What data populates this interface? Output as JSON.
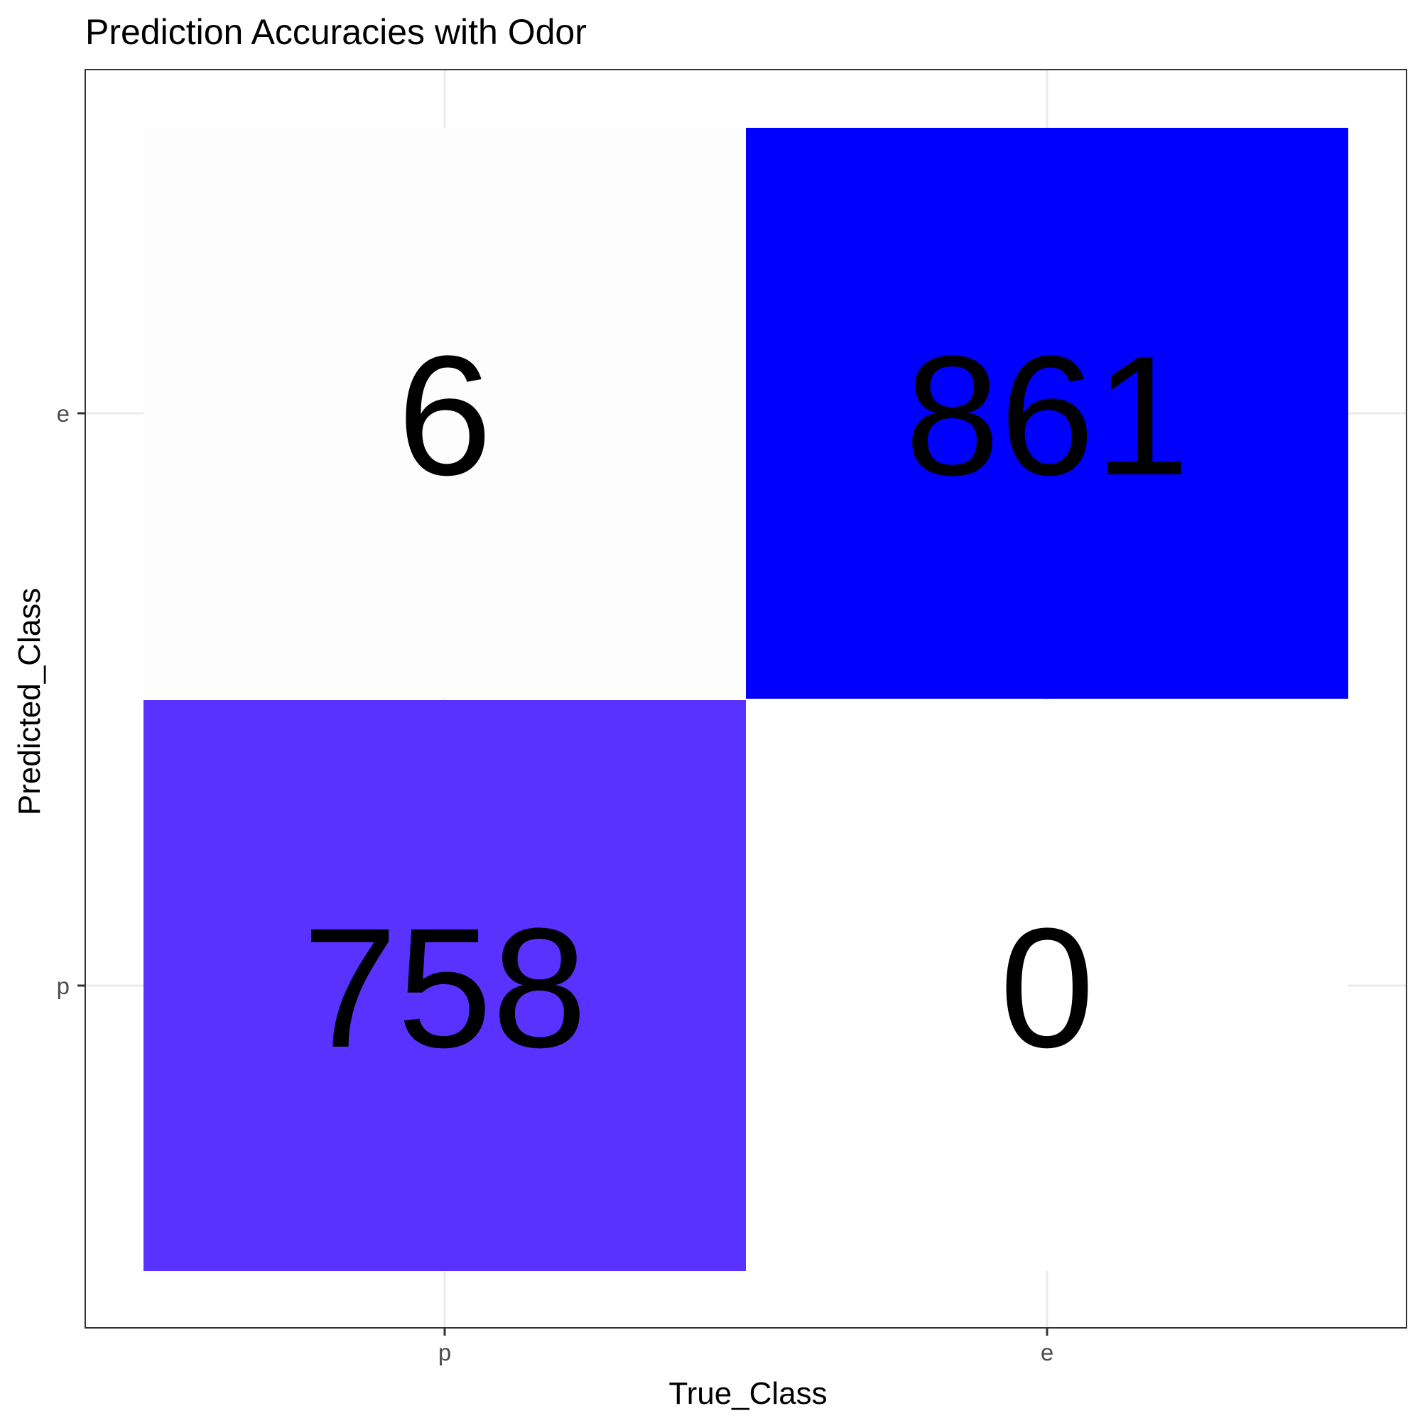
{
  "chart_data": {
    "type": "heatmap",
    "title": "Prediction Accuracies with Odor",
    "xlabel": "True_Class",
    "ylabel": "Predicted_Class",
    "x_categories": [
      "p",
      "e"
    ],
    "y_categories": [
      "p",
      "e"
    ],
    "cells": [
      {
        "true_class": "p",
        "predicted_class": "e",
        "value": 6,
        "label": "6",
        "fill": "#fdfdfd"
      },
      {
        "true_class": "e",
        "predicted_class": "e",
        "value": 861,
        "label": "861",
        "fill": "#0000ff"
      },
      {
        "true_class": "p",
        "predicted_class": "p",
        "value": 758,
        "label": "758",
        "fill": "#5a32ff"
      },
      {
        "true_class": "e",
        "predicted_class": "p",
        "value": 0,
        "label": "0",
        "fill": "#ffffff"
      }
    ],
    "grid": true,
    "legend": "none",
    "colors": {
      "panel_border": "#333333",
      "gridline": "#ebebeb",
      "tick_mark": "#333333"
    }
  }
}
